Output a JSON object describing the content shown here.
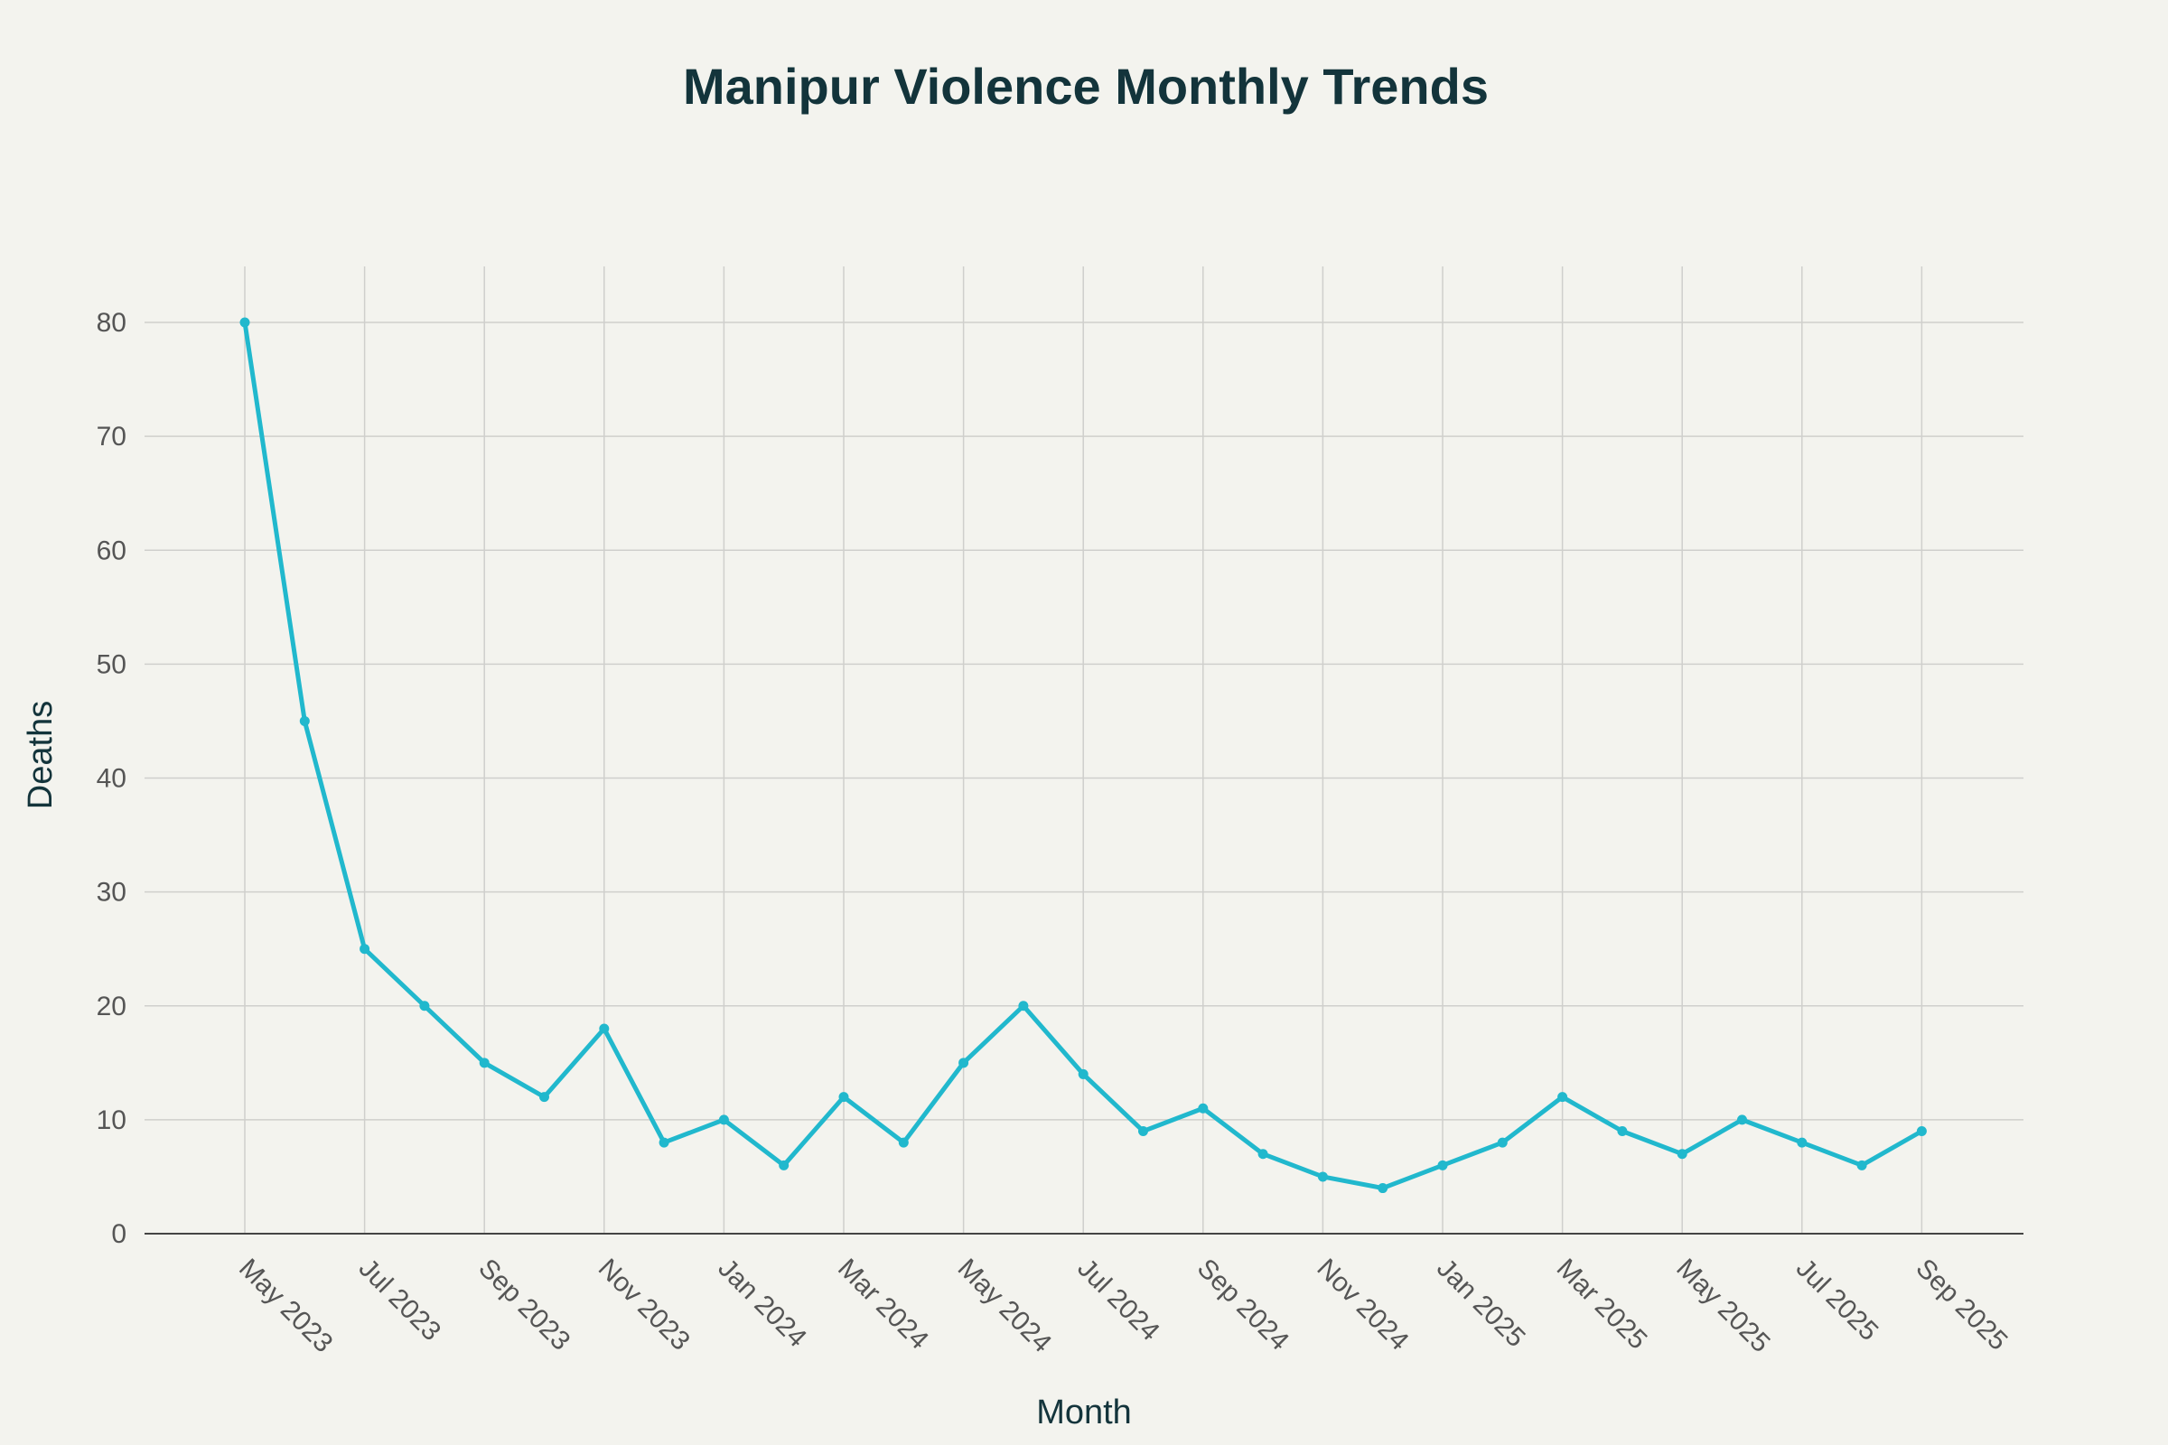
{
  "chart_data": {
    "type": "line",
    "title": "Manipur Violence Monthly Trends",
    "xlabel": "Month",
    "ylabel": "Deaths",
    "ylim": [
      0,
      85
    ],
    "yticks": [
      0,
      10,
      20,
      30,
      40,
      50,
      60,
      70,
      80
    ],
    "grid": true,
    "legend": "none",
    "x": [
      "May 2023",
      "Jun 2023",
      "Jul 2023",
      "Aug 2023",
      "Sep 2023",
      "Oct 2023",
      "Nov 2023",
      "Dec 2023",
      "Jan 2024",
      "Feb 2024",
      "Mar 2024",
      "Apr 2024",
      "May 2024",
      "Jun 2024",
      "Jul 2024",
      "Aug 2024",
      "Sep 2024",
      "Oct 2024",
      "Nov 2024",
      "Dec 2024",
      "Jan 2025",
      "Feb 2025",
      "Mar 2025",
      "Apr 2025",
      "May 2025",
      "Jun 2025",
      "Jul 2025",
      "Aug 2025",
      "Sep 2025"
    ],
    "xtick_labels": [
      "May 2023",
      "Jul 2023",
      "Sep 2023",
      "Nov 2023",
      "Jan 2024",
      "Mar 2024",
      "May 2024",
      "Jul 2024",
      "Sep 2024",
      "Nov 2024",
      "Jan 2025",
      "Mar 2025",
      "May 2025",
      "Jul 2025",
      "Sep 2025"
    ],
    "series": [
      {
        "name": "Deaths",
        "color": "#21b8cd",
        "values": [
          80,
          45,
          25,
          20,
          15,
          12,
          18,
          8,
          10,
          6,
          12,
          8,
          15,
          20,
          14,
          9,
          11,
          7,
          5,
          4,
          6,
          8,
          12,
          9,
          7,
          10,
          8,
          6,
          9
        ]
      }
    ]
  }
}
